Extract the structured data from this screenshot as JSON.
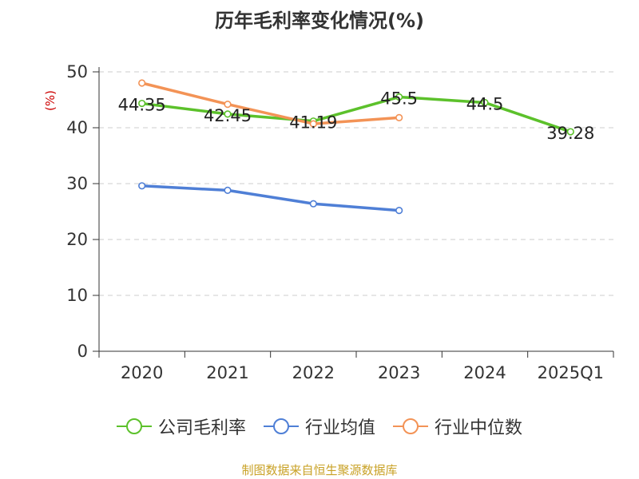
{
  "chart_data": {
    "type": "line",
    "title": "历年毛利率变化情况(%)",
    "ylabel": "(%)",
    "categories": [
      "2020",
      "2021",
      "2022",
      "2023",
      "2024",
      "2025Q1"
    ],
    "yticks": [
      "0",
      "10",
      "20",
      "30",
      "40",
      "50"
    ],
    "ylim": [
      0,
      50
    ],
    "grid": true,
    "legend_position": "bottom",
    "series": [
      {
        "name": "公司毛利率",
        "color": "#5cc12b",
        "values": [
          44.35,
          42.45,
          41.19,
          45.5,
          44.5,
          39.28
        ],
        "labels": [
          "44.35",
          "42.45",
          "41.19",
          "45.5",
          "44.5",
          "39.28"
        ]
      },
      {
        "name": "行业均值",
        "color": "#4f7fd6",
        "values": [
          29.6,
          28.8,
          26.4,
          25.2,
          null,
          null
        ]
      },
      {
        "name": "行业中位数",
        "color": "#f39356",
        "values": [
          48.0,
          44.2,
          40.7,
          41.8,
          null,
          null
        ]
      }
    ]
  },
  "source_note": "制图数据来自恒生聚源数据库"
}
